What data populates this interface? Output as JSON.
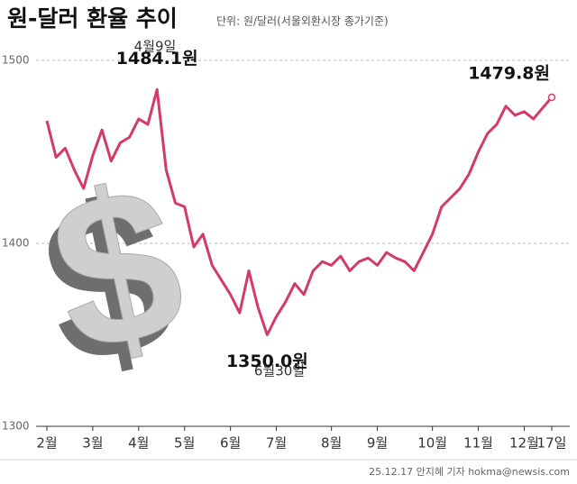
{
  "chart_data": {
    "type": "line",
    "title": "원-달러 환율 추이",
    "subtitle": "단위: 원/달러(서울외환시장 종가기준)",
    "categories": [
      "2월",
      null,
      null,
      null,
      null,
      "3월",
      null,
      null,
      null,
      null,
      "4월",
      null,
      null,
      null,
      null,
      "5월",
      null,
      null,
      null,
      null,
      "6월",
      null,
      null,
      null,
      null,
      "7월",
      null,
      null,
      null,
      null,
      null,
      "8월",
      null,
      null,
      null,
      null,
      "9월",
      null,
      null,
      null,
      null,
      null,
      "10월",
      null,
      null,
      null,
      null,
      "11월",
      null,
      null,
      null,
      null,
      "12월",
      null,
      null,
      "17일"
    ],
    "series": [
      {
        "name": "원-달러 환율",
        "color": "#d43a67",
        "values": [
          1467,
          1447,
          1452,
          1440,
          1430,
          1448,
          1462,
          1445,
          1455,
          1458,
          1468,
          1465,
          1484.1,
          1440,
          1422,
          1420,
          1398,
          1405,
          1388,
          1380,
          1372,
          1362,
          1385,
          1365,
          1350.0,
          1360,
          1368,
          1378,
          1372,
          1385,
          1390,
          1388,
          1393,
          1385,
          1390,
          1392,
          1388,
          1395,
          1392,
          1390,
          1385,
          1395,
          1405,
          1420,
          1425,
          1430,
          1438,
          1450,
          1460,
          1465,
          1475,
          1470,
          1472,
          1468,
          1474,
          1479.8
        ],
        "value_labels": [
          null,
          null,
          null,
          null,
          null,
          null,
          null,
          null,
          null,
          null,
          null,
          null,
          "1484.1원",
          null,
          null,
          null,
          null,
          null,
          null,
          null,
          null,
          null,
          null,
          null,
          "1350.0원",
          null,
          null,
          null,
          null,
          null,
          null,
          null,
          null,
          null,
          null,
          null,
          null,
          null,
          null,
          null,
          null,
          null,
          null,
          null,
          null,
          null,
          null,
          null,
          null,
          null,
          null,
          null,
          null,
          null,
          null,
          "1479.8원"
        ]
      }
    ],
    "annotations": [
      "4월9일",
      "6월30일"
    ],
    "ylim": [
      1300,
      1500
    ],
    "yticks": [
      1300,
      1400,
      1500
    ],
    "grid": true,
    "footer": "25.12.17 안지혜 기자 hokma@newsis.com"
  }
}
